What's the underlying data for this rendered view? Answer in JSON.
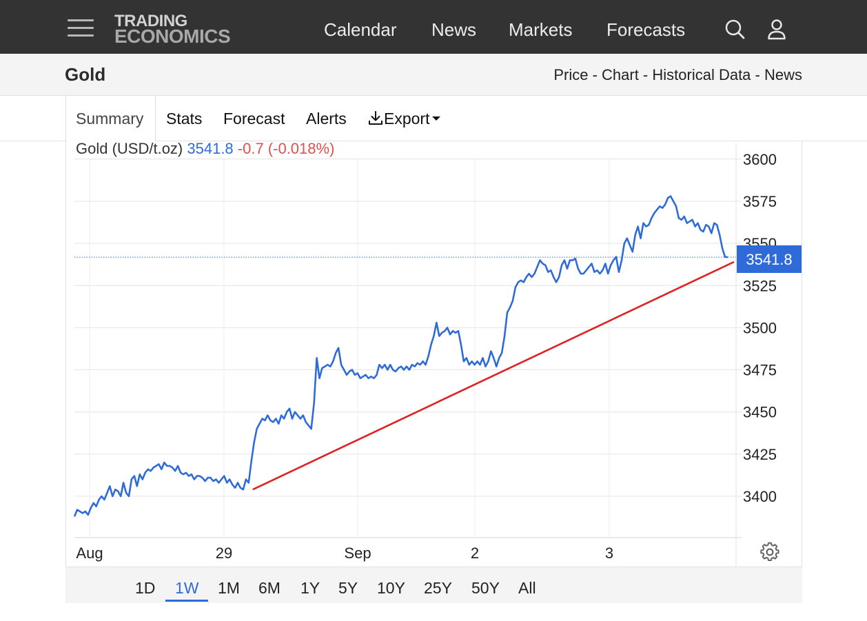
{
  "header": {
    "logo_line1": "TRADING",
    "logo_line2": "ECONOMICS",
    "nav": [
      "Calendar",
      "News",
      "Markets",
      "Forecasts"
    ],
    "icons": [
      "menu-icon",
      "search-icon",
      "user-icon"
    ]
  },
  "page": {
    "title": "Gold",
    "subnav": [
      "Price",
      "Chart",
      "Historical Data",
      "News"
    ],
    "subnav_separator": " - "
  },
  "tabs": [
    "Summary",
    "Stats",
    "Forecast",
    "Alerts",
    "Export"
  ],
  "tabs_active": "Summary",
  "export_icon": "download-icon",
  "ranges": [
    "1D",
    "1W",
    "1M",
    "6M",
    "1Y",
    "5Y",
    "10Y",
    "25Y",
    "50Y",
    "All"
  ],
  "range_active": "1W",
  "settings_icon": "gear-icon",
  "colors": {
    "line": "#2f6bd8",
    "trend": "#e02020",
    "positive_value": "#2f6bd8",
    "negative_change": "#e05050",
    "header_bg": "#333333"
  },
  "chart_data": {
    "type": "line",
    "title": "Gold (USD/t.oz)",
    "last_value": "3541.8",
    "change": "-0.7 (-0.018%)",
    "price_badge": "3541.8",
    "x_tick_labels": [
      "Aug",
      "29",
      "Sep",
      "2",
      "3"
    ],
    "y_ticks": [
      3400,
      3425,
      3450,
      3475,
      3500,
      3525,
      3550,
      3575,
      3600
    ],
    "ylim": [
      3375,
      3610
    ],
    "grid": true,
    "y_axis_side": "right",
    "series": [
      {
        "values": [
          3388,
          3392,
          3391,
          3390,
          3391,
          3389,
          3393,
          3396,
          3394,
          3398,
          3400,
          3398,
          3402,
          3406,
          3400,
          3404,
          3403,
          3400,
          3408,
          3402,
          3400,
          3410,
          3412,
          3406,
          3413,
          3410,
          3414,
          3416,
          3415,
          3417,
          3418,
          3419,
          3416,
          3420,
          3418,
          3418,
          3417,
          3415,
          3418,
          3414,
          3413,
          3414,
          3412,
          3413,
          3410,
          3412,
          3412,
          3411,
          3409,
          3411,
          3411,
          3409,
          3410,
          3408,
          3410,
          3412,
          3408,
          3410,
          3407,
          3405,
          3408,
          3405,
          3404,
          3410,
          3408,
          3421,
          3432,
          3440,
          3443,
          3446,
          3445,
          3448,
          3445,
          3444,
          3446,
          3443,
          3448,
          3446,
          3450,
          3452,
          3446,
          3450,
          3448,
          3446,
          3448,
          3444,
          3442,
          3440,
          3455,
          3482,
          3470,
          3476,
          3477,
          3478,
          3477,
          3480,
          3485,
          3488,
          3478,
          3475,
          3472,
          3474,
          3475,
          3472,
          3473,
          3470,
          3471,
          3472,
          3470,
          3471,
          3470,
          3472,
          3478,
          3476,
          3478,
          3475,
          3478,
          3475,
          3474,
          3476,
          3477,
          3475,
          3477,
          3475,
          3478,
          3477,
          3479,
          3478,
          3480,
          3478,
          3483,
          3490,
          3495,
          3503,
          3495,
          3497,
          3498,
          3500,
          3496,
          3498,
          3497,
          3498,
          3490,
          3480,
          3482,
          3478,
          3480,
          3478,
          3480,
          3478,
          3482,
          3477,
          3480,
          3486,
          3482,
          3477,
          3482,
          3485,
          3495,
          3509,
          3512,
          3516,
          3524,
          3527,
          3528,
          3527,
          3530,
          3532,
          3530,
          3532,
          3536,
          3540,
          3538,
          3537,
          3533,
          3534,
          3530,
          3527,
          3530,
          3537,
          3540,
          3535,
          3540,
          3540,
          3541,
          3535,
          3532,
          3532,
          3534,
          3536,
          3538,
          3533,
          3534,
          3532,
          3534,
          3538,
          3532,
          3537,
          3540,
          3542,
          3533,
          3540,
          3550,
          3553,
          3549,
          3545,
          3555,
          3560,
          3553,
          3562,
          3560,
          3561,
          3565,
          3568,
          3570,
          3572,
          3571,
          3573,
          3577,
          3578,
          3575,
          3572,
          3565,
          3564,
          3566,
          3562,
          3563,
          3564,
          3560,
          3562,
          3558,
          3557,
          3561,
          3560,
          3556,
          3562,
          3561,
          3555,
          3547,
          3542,
          3541.8
        ]
      }
    ],
    "trendline": {
      "from": [
        0.273,
        3404
      ],
      "to": [
        1.0,
        3539
      ]
    }
  }
}
